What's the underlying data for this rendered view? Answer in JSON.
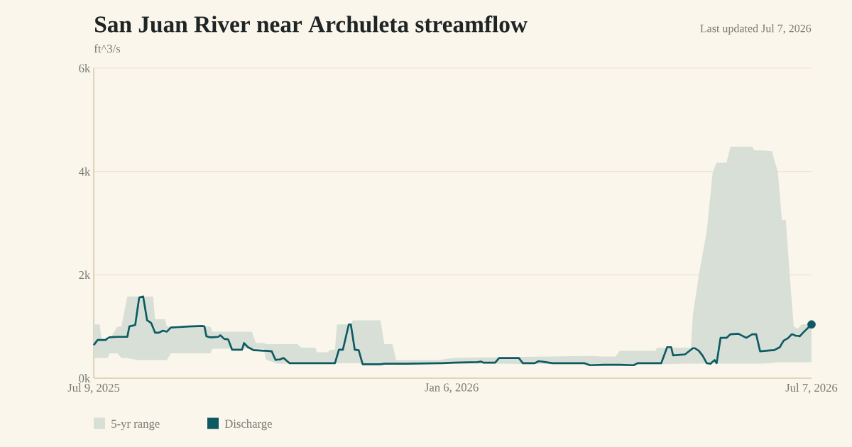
{
  "chart_data": {
    "type": "line",
    "title": "San Juan River near Archuleta streamflow",
    "subtitle": "Last updated Jul 7, 2026",
    "ylabel": "ft^3/s",
    "annotations": [
      "5-yr range"
    ],
    "xlim": [
      "2025-07-09",
      "2026-07-07"
    ],
    "xticks": [
      {
        "value": "2025-07-09",
        "label": "Jul 9, 2025"
      },
      {
        "value": "2026-01-06",
        "label": "Jan 6, 2026"
      },
      {
        "value": "2026-07-07",
        "label": "Jul 7, 2026"
      }
    ],
    "ylim": [
      0,
      6000
    ],
    "yticks": [
      {
        "value": 0,
        "label": "0k"
      },
      {
        "value": 2000,
        "label": "2k"
      },
      {
        "value": 4000,
        "label": "4k"
      },
      {
        "value": 6000,
        "label": "6k"
      }
    ],
    "grid": "y",
    "legend": "bottom",
    "series": [
      {
        "name": "Discharge",
        "type": "line",
        "color": "#0e5a63",
        "x": [
          "2025-07-09",
          "2025-07-11",
          "2025-07-12",
          "2025-07-13",
          "2025-07-15",
          "2025-07-16",
          "2025-07-17",
          "2025-07-21",
          "2025-07-23",
          "2025-07-26",
          "2025-07-27",
          "2025-07-30",
          "2025-07-31",
          "2025-08-01",
          "2025-08-03",
          "2025-08-05",
          "2025-08-07",
          "2025-08-08",
          "2025-08-09",
          "2025-08-11",
          "2025-08-13",
          "2025-08-14",
          "2025-08-15",
          "2025-08-17",
          "2025-08-26",
          "2025-09-02",
          "2025-09-03",
          "2025-09-04",
          "2025-09-06",
          "2025-09-07",
          "2025-09-10",
          "2025-09-11",
          "2025-09-13",
          "2025-09-15",
          "2025-09-17",
          "2025-09-22",
          "2025-09-23",
          "2025-09-25",
          "2025-09-27",
          "2025-09-28",
          "2025-09-29",
          "2025-10-03",
          "2025-10-04",
          "2025-10-07",
          "2025-10-09",
          "2025-10-10",
          "2025-10-11",
          "2025-10-13",
          "2025-10-16",
          "2025-10-20",
          "2025-10-22",
          "2025-10-29",
          "2025-10-30",
          "2025-11-04",
          "2025-11-06",
          "2025-11-08",
          "2025-11-09",
          "2025-11-10",
          "2025-11-12",
          "2025-11-15",
          "2025-11-16",
          "2025-11-17",
          "2025-11-18",
          "2025-11-20",
          "2025-11-22",
          "2025-12-01",
          "2025-12-03",
          "2025-12-07",
          "2025-12-09",
          "2025-12-14",
          "2025-12-31",
          "2026-01-01",
          "2026-01-07",
          "2026-01-19",
          "2026-01-21",
          "2026-01-22",
          "2026-01-28",
          "2026-01-30",
          "2026-02-09",
          "2026-02-11",
          "2026-02-17",
          "2026-02-19",
          "2026-02-26",
          "2026-03-13",
          "2026-03-14",
          "2026-03-17",
          "2026-03-24",
          "2026-03-30",
          "2026-04-01",
          "2026-04-08",
          "2026-04-10",
          "2026-04-11",
          "2026-04-19",
          "2026-04-20",
          "2026-04-22",
          "2026-04-25",
          "2026-04-27",
          "2026-04-28",
          "2026-05-04",
          "2026-05-07",
          "2026-05-08",
          "2026-05-09",
          "2026-05-11",
          "2026-05-13",
          "2026-05-15",
          "2026-05-17",
          "2026-05-18",
          "2026-05-19",
          "2026-05-20",
          "2026-05-22",
          "2026-05-25",
          "2026-05-27",
          "2026-05-31",
          "2026-06-04",
          "2026-06-07",
          "2026-06-08",
          "2026-06-09",
          "2026-06-11",
          "2026-06-17",
          "2026-06-18",
          "2026-06-20",
          "2026-06-21",
          "2026-06-22",
          "2026-06-23",
          "2026-06-24",
          "2026-06-25",
          "2026-06-26",
          "2026-06-27",
          "2026-06-28",
          "2026-06-29",
          "2026-06-30",
          "2026-07-01",
          "2026-07-02",
          "2026-07-03",
          "2026-07-07"
        ],
        "values": [
          640,
          740,
          740,
          740,
          740,
          770,
          790,
          800,
          800,
          800,
          1000,
          1030,
          1300,
          1560,
          1580,
          1120,
          1070,
          980,
          880,
          880,
          920,
          910,
          900,
          980,
          1000,
          1010,
          1000,
          810,
          790,
          790,
          800,
          830,
          760,
          750,
          550,
          550,
          680,
          600,
          560,
          540,
          540,
          530,
          530,
          520,
          350,
          360,
          360,
          390,
          290,
          290,
          290,
          290,
          290,
          290,
          290,
          290,
          420,
          550,
          550,
          1040,
          1040,
          800,
          550,
          540,
          270,
          270,
          280,
          280,
          280,
          280,
          290,
          290,
          300,
          310,
          320,
          300,
          300,
          390,
          390,
          290,
          290,
          330,
          290,
          290,
          290,
          250,
          260,
          260,
          260,
          250,
          290,
          290,
          290,
          290,
          290,
          600,
          600,
          440,
          460,
          550,
          580,
          580,
          530,
          430,
          290,
          280,
          320,
          350,
          290,
          780,
          780,
          850,
          860,
          780,
          850,
          850,
          850,
          520,
          540,
          540,
          580,
          600,
          670,
          730,
          750,
          770,
          810,
          850,
          840,
          820,
          820,
          810,
          850,
          890,
          1040
        ],
        "lower": [
          390,
          390,
          390,
          390,
          390,
          390,
          480,
          480,
          390,
          390,
          380,
          360,
          350,
          350,
          350,
          350,
          350,
          350,
          350,
          350,
          350,
          350,
          350,
          480,
          480,
          480,
          480,
          480,
          480,
          570,
          570,
          570,
          570,
          570,
          570,
          570,
          570,
          570,
          570,
          570,
          570,
          570,
          360,
          320,
          290,
          280,
          280,
          280,
          280,
          280,
          280,
          280,
          280,
          280,
          280,
          280,
          290,
          290,
          290,
          290,
          290,
          290,
          290,
          290,
          285,
          280,
          280,
          280,
          280,
          280,
          280,
          280,
          280,
          280,
          280,
          280,
          280,
          280,
          275,
          275,
          275,
          275,
          270,
          270,
          265,
          250,
          240,
          240,
          240,
          240,
          260,
          270,
          270,
          270,
          270,
          270,
          275,
          275,
          280,
          280,
          280,
          280,
          280,
          280,
          280,
          280,
          280,
          280,
          280,
          280,
          280,
          280,
          280,
          280,
          280,
          280,
          280,
          280,
          290,
          300,
          310,
          310,
          310,
          310,
          310,
          310,
          310,
          310,
          310,
          310,
          310,
          310,
          310,
          310,
          310
        ],
        "upper": [
          1040,
          1040,
          1040,
          740,
          740,
          740,
          740,
          1000,
          1000,
          1580,
          1580,
          1580,
          1580,
          1580,
          1580,
          1580,
          1580,
          1580,
          1140,
          1140,
          1140,
          1140,
          1000,
          1000,
          1000,
          1000,
          1000,
          1000,
          1000,
          900,
          900,
          900,
          900,
          900,
          900,
          900,
          900,
          900,
          900,
          790,
          680,
          680,
          660,
          660,
          660,
          660,
          660,
          660,
          660,
          660,
          590,
          590,
          500,
          500,
          550,
          550,
          1040,
          1040,
          1040,
          1040,
          1040,
          1120,
          1120,
          1120,
          1120,
          1120,
          660,
          660,
          350,
          350,
          350,
          360,
          390,
          400,
          400,
          400,
          400,
          400,
          410,
          410,
          415,
          415,
          420,
          430,
          430,
          430,
          420,
          420,
          530,
          530,
          530,
          530,
          530,
          590,
          590,
          590,
          590,
          590,
          590,
          590,
          1230,
          1480,
          1990,
          2420,
          2840,
          3600,
          3980,
          4080,
          4170,
          4170,
          4170,
          4480,
          4480,
          4480,
          4480,
          4410,
          4410,
          4410,
          4390,
          4250,
          3980,
          3520,
          3060,
          3060,
          3060,
          2520,
          1970,
          1490,
          1000,
          980,
          950,
          1000,
          1040,
          1040,
          1040
        ]
      },
      {
        "type": "scatter",
        "color": "#0e5a63",
        "x": [
          "2026-07-07"
        ],
        "values": [
          1040
        ]
      }
    ]
  }
}
